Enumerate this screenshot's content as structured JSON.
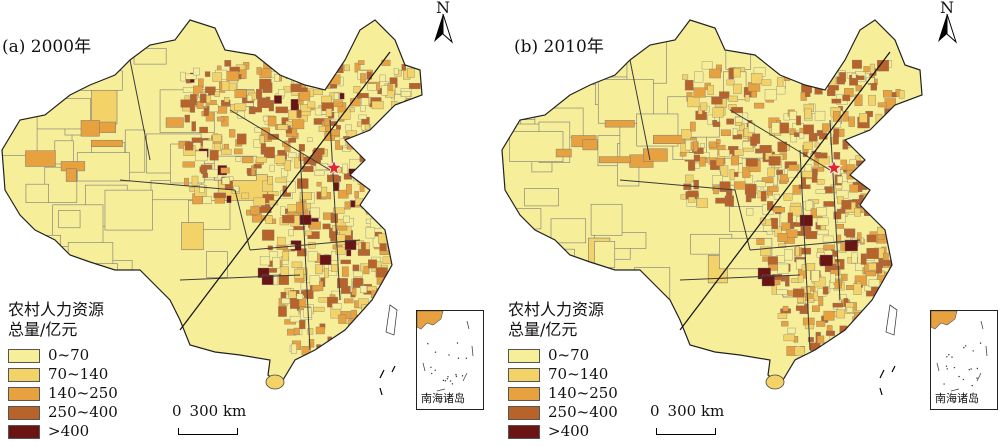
{
  "panels": [
    {
      "title": "(a) 2000年",
      "high_intensity": 0.35
    },
    {
      "title": "(b) 2010年",
      "high_intensity": 0.6
    }
  ],
  "north_label": "N",
  "legend": {
    "title_line1": "农村人力资源",
    "title_line2": "总量/亿元",
    "classes": [
      {
        "label": "0~70",
        "color": "#f7ee9a"
      },
      {
        "label": "70~140",
        "color": "#f3d268"
      },
      {
        "label": "140~250",
        "color": "#e7a23f"
      },
      {
        "label": "250~400",
        "color": "#b8632a"
      },
      {
        "label": ">400",
        "color": "#6b1414"
      }
    ]
  },
  "scale": {
    "zero": "0",
    "distance": "300 km"
  },
  "inset_label": "南海诸岛",
  "capital_marker_color": "#e0282e",
  "boundary_color": "#7a7a7a"
}
